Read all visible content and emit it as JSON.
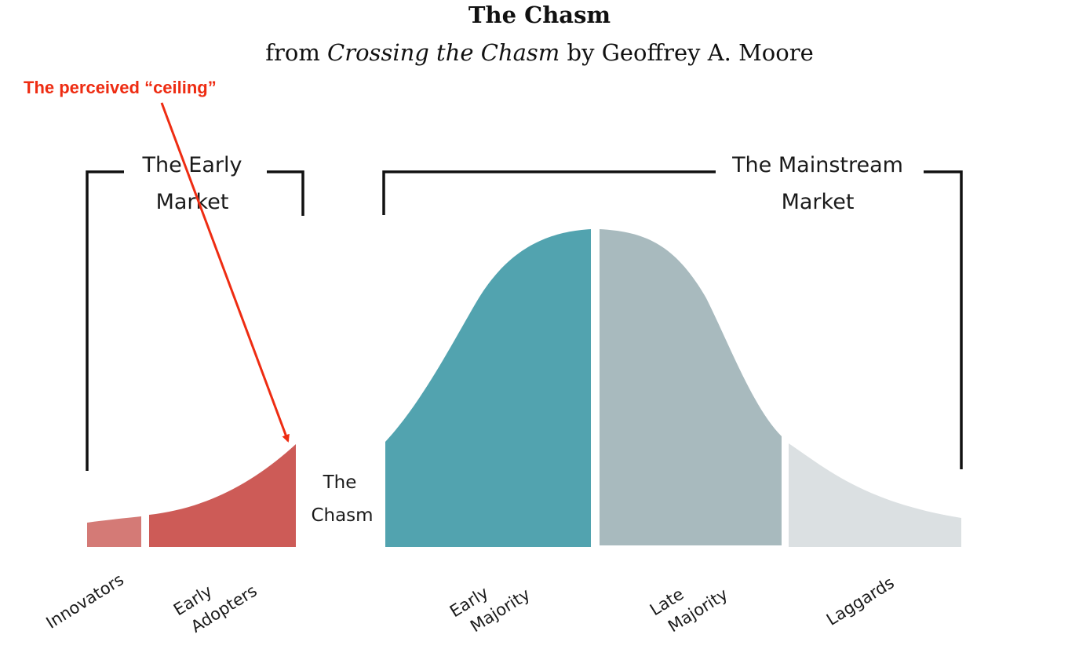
{
  "header": {
    "title": "The Chasm",
    "subtitle_prefix": "from ",
    "subtitle_book": "Crossing the Chasm",
    "subtitle_suffix": " by Geoffrey A. Moore"
  },
  "annotation": {
    "text": "The perceived “ceiling”",
    "color": "#ee2c12"
  },
  "brackets": {
    "early_market": {
      "line1": "The Early",
      "line2": "Market"
    },
    "mainstream_market": {
      "line1": "The Mainstream",
      "line2": "Market"
    }
  },
  "chasm": {
    "line1": "The",
    "line2": "Chasm"
  },
  "segments": [
    {
      "id": "innovators",
      "line1": "Innovators",
      "line2": "",
      "color": "#d47a76"
    },
    {
      "id": "early-adopters",
      "line1": "Early",
      "line2": "Adopters",
      "color": "#cd5b57"
    },
    {
      "id": "early-majority",
      "line1": "Early",
      "line2": "Majority",
      "color": "#52a3af"
    },
    {
      "id": "late-majority",
      "line1": "Late",
      "line2": "Majority",
      "color": "#a8babe"
    },
    {
      "id": "laggards",
      "line1": "Laggards",
      "line2": "",
      "color": "#dbe0e2"
    }
  ]
}
